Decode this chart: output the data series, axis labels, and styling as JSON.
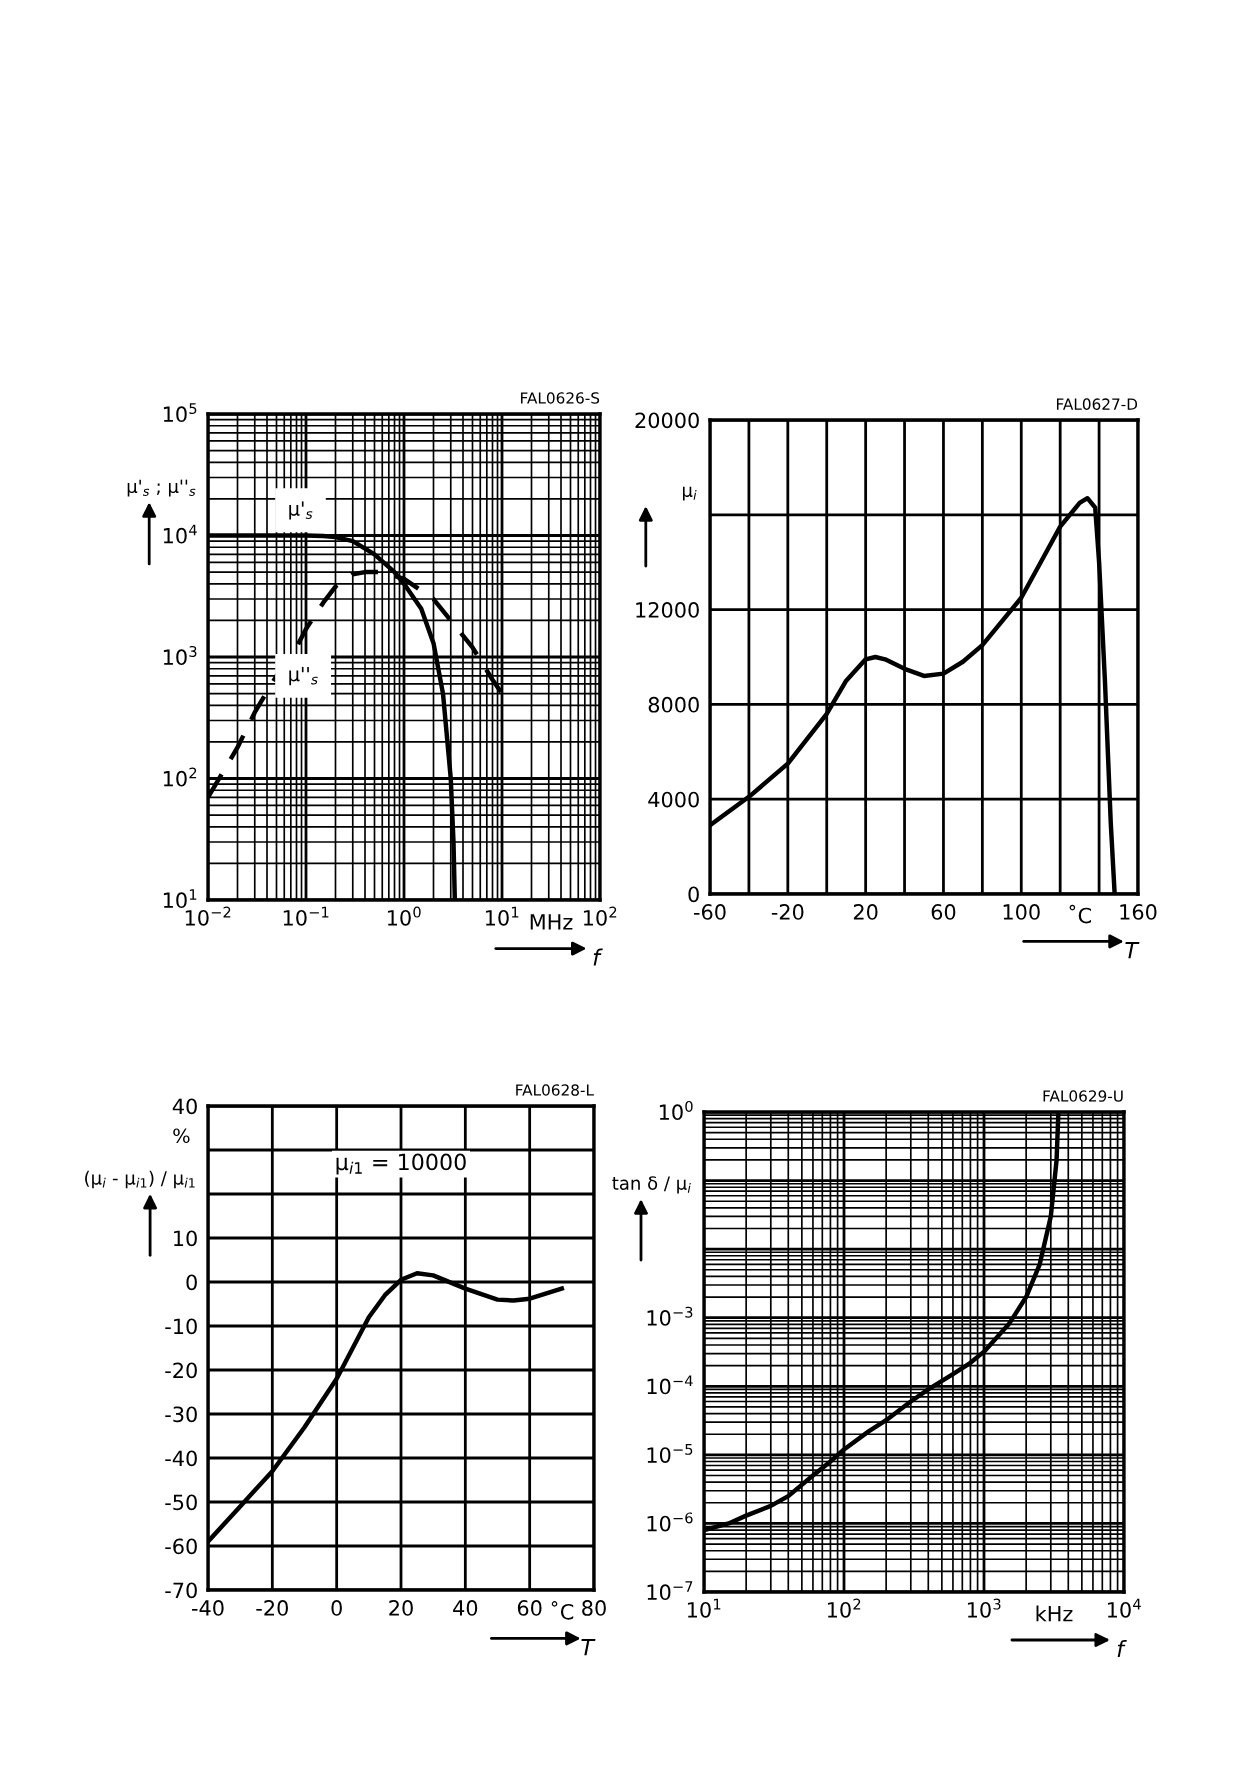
{
  "chart_data": [
    {
      "type": "line",
      "xlabel": "f",
      "ylabel": "μ'$_{s}$ ; μ''$_{s}$",
      "log": "xy",
      "grid": true,
      "legend": false,
      "marker": "none",
      "xlim": [
        0.01,
        100
      ],
      "ylim": [
        10,
        100000
      ],
      "xticks": [
        {
          "value": 0.01,
          "label": "10$^{−2}$"
        },
        {
          "value": 0.1,
          "label": "10$^{−1}$"
        },
        {
          "value": 1,
          "label": "10$^{0}$"
        },
        {
          "value": 10,
          "label": "10$^{1}$"
        },
        {
          "value": 100,
          "label": "10$^{2}$"
        }
      ],
      "yticks": [
        {
          "value": 10,
          "label": "10$^{1}$"
        },
        {
          "value": 100,
          "label": "10$^{2}$"
        },
        {
          "value": 1000,
          "label": "10$^{3}$"
        },
        {
          "value": 10000,
          "label": "10$^{4}$"
        },
        {
          "value": 100000,
          "label": "10$^{5}$"
        }
      ],
      "annotations": [
        "FAL0626-S",
        "MHz"
      ],
      "series": [
        {
          "name": "μ'$_{s}$",
          "color": "#000000",
          "line_style": "solid",
          "x": [
            0.01,
            0.02,
            0.05,
            0.1,
            0.15,
            0.2,
            0.3,
            0.5,
            0.8,
            1,
            1.5,
            2,
            2.5,
            3,
            3.2,
            3.3
          ],
          "values": [
            10000,
            10000,
            10000,
            10000,
            9900,
            9700,
            9000,
            7000,
            5000,
            4000,
            2500,
            1300,
            500,
            100,
            30,
            10
          ]
        },
        {
          "name": "μ''$_{s}$",
          "color": "#000000",
          "line_style": "dashed",
          "x": [
            0.01,
            0.02,
            0.03,
            0.05,
            0.08,
            0.1,
            0.15,
            0.2,
            0.3,
            0.4,
            0.6,
            1,
            2,
            3,
            5,
            8,
            10
          ],
          "values": [
            70,
            180,
            350,
            700,
            1200,
            1700,
            2800,
            3800,
            4800,
            5000,
            5000,
            4400,
            3000,
            2000,
            1200,
            650,
            500
          ]
        }
      ]
    },
    {
      "type": "line",
      "xlabel": "T",
      "ylabel": "μ$_{i}$",
      "grid": true,
      "legend": false,
      "marker": "none",
      "xlim": [
        -60,
        160
      ],
      "ylim": [
        0,
        20000
      ],
      "xticks": [
        -60,
        {
          "value": -40,
          "label": null
        },
        -20,
        {
          "value": 0,
          "label": null
        },
        20,
        {
          "value": 40,
          "label": null
        },
        60,
        {
          "value": 80,
          "label": null
        },
        100,
        {
          "value": 120,
          "label": null
        },
        {
          "value": 140,
          "label": null
        },
        160
      ],
      "yticks": [
        0,
        4000,
        8000,
        12000,
        {
          "value": 16000,
          "label": null
        },
        20000
      ],
      "annotations": [
        "FAL0627-D",
        "˚C"
      ],
      "series": [
        {
          "color": "#000000",
          "line_style": "solid",
          "x": [
            -60,
            -40,
            -20,
            0,
            10,
            20,
            25,
            30,
            40,
            50,
            60,
            70,
            80,
            100,
            110,
            120,
            130,
            134,
            138,
            140,
            143,
            146,
            148
          ],
          "values": [
            2900,
            4100,
            5500,
            7600,
            9000,
            9900,
            10000,
            9900,
            9500,
            9200,
            9300,
            9800,
            10500,
            12500,
            14000,
            15500,
            16500,
            16700,
            16300,
            14000,
            9000,
            3000,
            0
          ]
        }
      ]
    },
    {
      "type": "line",
      "xlabel": "T",
      "ylabel": "(μ$_{i}$ - μ$_{i1}$) / μ$_{i1}$",
      "grid": true,
      "legend": false,
      "marker": "none",
      "xlim": [
        -40,
        80
      ],
      "ylim": [
        -70,
        40
      ],
      "xticks": [
        -40,
        -20,
        0,
        20,
        40,
        60,
        80
      ],
      "yticks": [
        -70,
        -60,
        -50,
        -40,
        -30,
        -20,
        -10,
        0,
        10,
        {
          "value": 20,
          "label": null
        },
        {
          "value": 30,
          "label": null
        },
        40
      ],
      "annotations": [
        "FAL0628-L",
        "˚C",
        "%",
        "μ$_{i1}$ = 10000"
      ],
      "series": [
        {
          "color": "#000000",
          "line_style": "solid",
          "x": [
            -40,
            -30,
            -20,
            -10,
            0,
            10,
            15,
            20,
            25,
            30,
            40,
            50,
            55,
            60,
            70
          ],
          "values": [
            -59,
            -51,
            -43,
            -33,
            -22,
            -8,
            -3,
            0.5,
            2,
            1.5,
            -1.5,
            -4,
            -4.2,
            -3.8,
            -1.5
          ]
        }
      ]
    },
    {
      "type": "line",
      "xlabel": "f",
      "ylabel": "tan δ / μ$_{i}$",
      "log": "xy",
      "grid": true,
      "legend": false,
      "marker": "none",
      "xlim": [
        10,
        10000
      ],
      "ylim": [
        1e-07,
        1
      ],
      "xticks": [
        {
          "value": 10,
          "label": "10$^{1}$"
        },
        {
          "value": 100,
          "label": "10$^{2}$"
        },
        {
          "value": 1000,
          "label": "10$^{3}$"
        },
        {
          "value": 10000,
          "label": "10$^{4}$"
        }
      ],
      "yticks": [
        {
          "value": 1e-07,
          "label": "10$^{−7}$"
        },
        {
          "value": 1e-06,
          "label": "10$^{−6}$"
        },
        {
          "value": 1e-05,
          "label": "10$^{−5}$"
        },
        {
          "value": 0.0001,
          "label": "10$^{−4}$"
        },
        {
          "value": 0.001,
          "label": "10$^{−3}$"
        },
        {
          "value": 0.01,
          "label": null
        },
        {
          "value": 0.1,
          "label": null
        },
        {
          "value": 1,
          "label": "10$^{0}$"
        }
      ],
      "annotations": [
        "FAL0629-U",
        "kHz"
      ],
      "series": [
        {
          "color": "#000000",
          "line_style": "solid",
          "x": [
            10,
            15,
            20,
            30,
            40,
            60,
            80,
            100,
            150,
            200,
            300,
            400,
            600,
            800,
            1000,
            1500,
            2000,
            2500,
            3000,
            3300,
            3400
          ],
          "values": [
            8e-07,
            1e-06,
            1.3e-06,
            1.8e-06,
            2.5e-06,
            5e-06,
            8e-06,
            1.2e-05,
            2.2e-05,
            3.2e-05,
            6e-05,
            9e-05,
            0.00015,
            0.00022,
            0.00032,
            0.0008,
            0.002,
            0.006,
            0.03,
            0.2,
            1
          ]
        }
      ]
    }
  ]
}
